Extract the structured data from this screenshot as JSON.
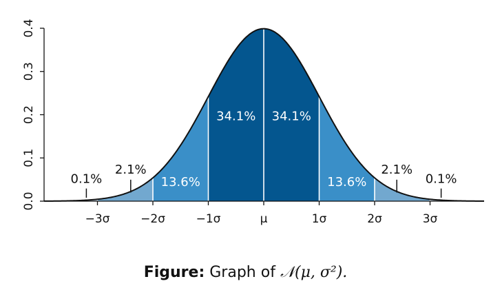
{
  "chart_data": {
    "type": "area",
    "distribution": "normal",
    "mean": 0,
    "sd": 1,
    "xlim": [
      -3.9,
      3.9
    ],
    "ylim": [
      0,
      0.4
    ],
    "y_ticks": [
      "0.0",
      "0.1",
      "0.2",
      "0.3",
      "0.4"
    ],
    "x_ticks": [
      {
        "sigma": -3,
        "label": "−3σ"
      },
      {
        "sigma": -2,
        "label": "−2σ"
      },
      {
        "sigma": -1,
        "label": "−1σ"
      },
      {
        "sigma": 0,
        "label": "μ"
      },
      {
        "sigma": 1,
        "label": "1σ"
      },
      {
        "sigma": 2,
        "label": "2σ"
      },
      {
        "sigma": 3,
        "label": "3σ"
      }
    ],
    "bands": [
      {
        "from": -3,
        "to": -2,
        "color": "#72a8cf"
      },
      {
        "from": -2,
        "to": -1,
        "color": "#3a8fc8"
      },
      {
        "from": -1,
        "to": 0,
        "color": "#04568f"
      },
      {
        "from": 0,
        "to": 1,
        "color": "#04568f"
      },
      {
        "from": 1,
        "to": 2,
        "color": "#3a8fc8"
      },
      {
        "from": 2,
        "to": 3,
        "color": "#72a8cf"
      }
    ],
    "region_labels": [
      {
        "text": "34.1%",
        "x": -0.5,
        "style": "inside"
      },
      {
        "text": "34.1%",
        "x": 0.5,
        "style": "inside"
      },
      {
        "text": "13.6%",
        "x": -1.5,
        "style": "inside"
      },
      {
        "text": "13.6%",
        "x": 1.5,
        "style": "inside"
      },
      {
        "text": "2.1%",
        "x": -2.4,
        "style": "callout"
      },
      {
        "text": "2.1%",
        "x": 2.4,
        "style": "callout"
      },
      {
        "text": "0.1%",
        "x": -3.2,
        "style": "callout"
      },
      {
        "text": "0.1%",
        "x": 3.2,
        "style": "callout"
      }
    ],
    "outer_tail_color": "#c9dbe9",
    "curve_color": "#111111",
    "grid": false
  },
  "caption": {
    "bold": "Figure:",
    "text": " Graph of ",
    "math": "𝒩(μ, σ²)."
  }
}
